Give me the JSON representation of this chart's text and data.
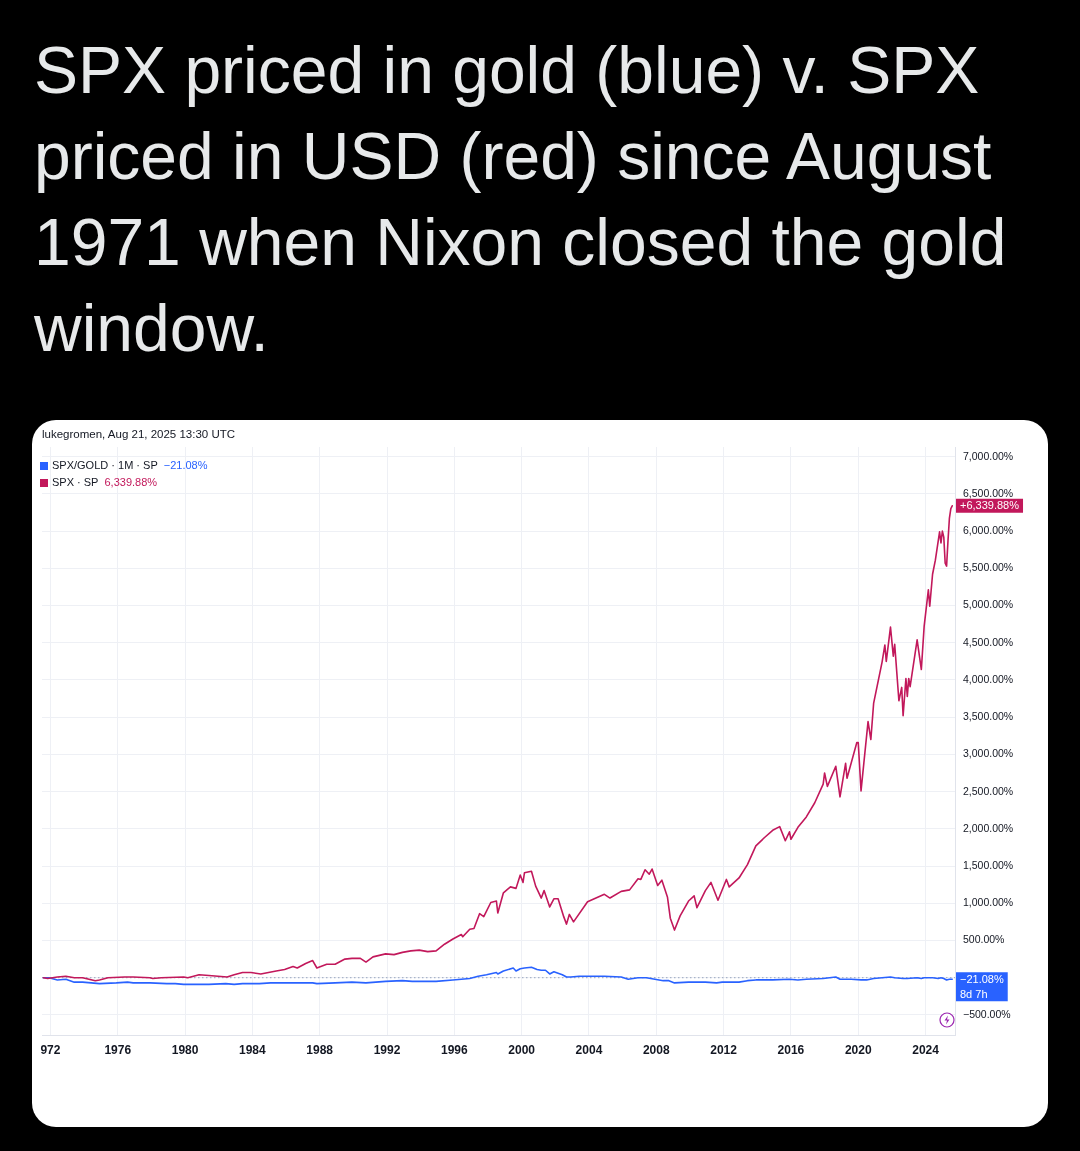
{
  "chart_data": {
    "type": "line",
    "title": "SPX priced in gold (blue) v. SPX priced in USD (red) since August 1971 when Nixon closed the gold window.",
    "subtitle": "lukegromen, Aug 21, 2025 13:30 UTC",
    "xlim": [
      "1971-07",
      "2025-10"
    ],
    "xticks": [
      {
        "value": "1972",
        "label": "972"
      },
      "1976",
      "1980",
      "1984",
      "1988",
      "1992",
      "1996",
      "2000",
      "2004",
      "2008",
      "2012",
      "2016",
      "2020",
      "2024"
    ],
    "ylim": [
      -770,
      7130
    ],
    "yticks": [
      {
        "value": -500,
        "label": "−500.00%"
      },
      {
        "value": 0,
        "label": null
      },
      {
        "value": 500,
        "label": "500.00%"
      },
      {
        "value": 1000,
        "label": "1,000.00%"
      },
      {
        "value": 1500,
        "label": "1,500.00%"
      },
      {
        "value": 2000,
        "label": "2,000.00%"
      },
      {
        "value": 2500,
        "label": "2,500.00%"
      },
      {
        "value": 3000,
        "label": "3,000.00%"
      },
      {
        "value": 3500,
        "label": "3,500.00%"
      },
      {
        "value": 4000,
        "label": "4,000.00%"
      },
      {
        "value": 4500,
        "label": "4,500.00%"
      },
      {
        "value": 5000,
        "label": "5,000.00%"
      },
      {
        "value": 5500,
        "label": "5,500.00%"
      },
      {
        "value": 6000,
        "label": "6,000.00%"
      },
      {
        "value": 6500,
        "label": "6,500.00%"
      },
      {
        "value": 7000,
        "label": "7,000.00%"
      }
    ],
    "grid": true,
    "legend": "top left",
    "ref_lines": [
      {
        "axis": "y",
        "value": 0,
        "color": "#a9b4c9",
        "line_style": "dotted"
      }
    ],
    "annotations": [
      "−21.08%",
      "6,339.88%",
      {
        "text": "8d 7h",
        "x": "2025-08",
        "y": -21.08
      }
    ],
    "series": [
      {
        "name": "SPX/GOLD · 1M · SP",
        "color": "#2962ff",
        "x": [
          "1971-08",
          "1971-12",
          "1972-06",
          "1972-12",
          "1973-06",
          "1973-12",
          "1974-06",
          "1974-12",
          "1975-12",
          "1976-08",
          "1976-12",
          "1977-12",
          "1978-12",
          "1979-06",
          "1979-12",
          "1980-01",
          "1981-06",
          "1982-06",
          "1982-12",
          "1983-06",
          "1984-06",
          "1985-02",
          "1985-12",
          "1986-12",
          "1987-08",
          "1987-11",
          "1988-12",
          "1989-12",
          "1990-10",
          "1991-12",
          "1992-12",
          "1993-07",
          "1993-12",
          "1994-12",
          "1995-12",
          "1996-12",
          "1997-06",
          "1997-12",
          "1998-07",
          "1998-08",
          "1998-12",
          "1999-07",
          "1999-09",
          "1999-12",
          "2000-03",
          "2000-08",
          "2000-12",
          "2001-03",
          "2001-06",
          "2001-09",
          "2001-12",
          "2002-06",
          "2002-09",
          "2002-12",
          "2003-06",
          "2003-12",
          "2004-12",
          "2005-12",
          "2006-05",
          "2006-12",
          "2007-06",
          "2007-12",
          "2008-06",
          "2008-10",
          "2009-02",
          "2009-12",
          "2010-12",
          "2011-08",
          "2011-12",
          "2012-12",
          "2013-06",
          "2013-12",
          "2014-12",
          "2015-12",
          "2016-06",
          "2016-12",
          "2017-12",
          "2018-09",
          "2018-12",
          "2019-08",
          "2020-03",
          "2020-07",
          "2020-12",
          "2021-06",
          "2021-12",
          "2022-03",
          "2022-09",
          "2022-12",
          "2023-07",
          "2023-10",
          "2023-12",
          "2024-03",
          "2024-06",
          "2024-10",
          "2024-12",
          "2025-02",
          "2025-04",
          "2025-06",
          "2025-07",
          "2025-08"
        ],
        "values": [
          0,
          0,
          -30,
          -20,
          -60,
          -60,
          -70,
          -80,
          -70,
          -60,
          -70,
          -70,
          -80,
          -80,
          -90,
          -90,
          -90,
          -80,
          -90,
          -80,
          -80,
          -70,
          -70,
          -70,
          -70,
          -80,
          -70,
          -60,
          -70,
          -50,
          -40,
          -50,
          -50,
          -50,
          -30,
          -10,
          20,
          40,
          70,
          50,
          90,
          130,
          90,
          120,
          130,
          140,
          110,
          100,
          100,
          50,
          80,
          40,
          10,
          10,
          20,
          20,
          20,
          10,
          -20,
          0,
          0,
          -20,
          -40,
          -40,
          -70,
          -60,
          -60,
          -70,
          -60,
          -60,
          -40,
          -30,
          -30,
          -20,
          -30,
          -20,
          -10,
          10,
          -20,
          -20,
          -30,
          -30,
          -10,
          0,
          10,
          0,
          -10,
          -10,
          0,
          -10,
          0,
          0,
          0,
          -10,
          0,
          -10,
          -30,
          -20,
          -20,
          -21.08
        ],
        "value_labels": [
          null,
          null,
          null,
          null,
          null,
          null,
          null,
          null,
          null,
          null,
          null,
          null,
          null,
          null,
          null,
          null,
          null,
          null,
          null,
          null,
          null,
          null,
          null,
          null,
          null,
          null,
          null,
          null,
          null,
          null,
          null,
          null,
          null,
          null,
          null,
          null,
          null,
          null,
          null,
          null,
          null,
          null,
          null,
          null,
          null,
          null,
          null,
          null,
          null,
          null,
          null,
          null,
          null,
          null,
          null,
          null,
          null,
          null,
          null,
          null,
          null,
          null,
          null,
          null,
          null,
          null,
          null,
          null,
          null,
          null,
          null,
          null,
          null,
          null,
          null,
          null,
          null,
          null,
          null,
          null,
          null,
          null,
          null,
          null,
          null,
          null,
          null,
          null,
          null,
          null,
          null,
          null,
          null,
          null,
          null,
          null,
          null,
          null,
          null,
          "−21.08%"
        ]
      },
      {
        "name": "SPX · SP",
        "color": "#c2185b",
        "x": [
          "1971-08",
          "1971-11",
          "1972-06",
          "1972-12",
          "1973-06",
          "1973-12",
          "1974-09",
          "1974-12",
          "1975-06",
          "1976-06",
          "1976-12",
          "1977-12",
          "1978-02",
          "1978-08",
          "1979-12",
          "1980-03",
          "1980-11",
          "1981-06",
          "1982-07",
          "1982-12",
          "1983-06",
          "1983-12",
          "1984-07",
          "1985-06",
          "1985-12",
          "1986-06",
          "1986-09",
          "1987-03",
          "1987-08",
          "1987-11",
          "1988-06",
          "1988-12",
          "1989-07",
          "1989-12",
          "1990-06",
          "1990-10",
          "1991-03",
          "1991-12",
          "1992-06",
          "1992-12",
          "1993-06",
          "1993-12",
          "1994-06",
          "1994-12",
          "1995-06",
          "1995-12",
          "1996-06",
          "1996-07",
          "1996-12",
          "1997-03",
          "1997-07",
          "1997-10",
          "1998-03",
          "1998-07",
          "1998-08",
          "1998-12",
          "1999-05",
          "1999-09",
          "1999-12",
          "2000-02",
          "2000-03",
          "2000-08",
          "2000-11",
          "2001-03",
          "2001-05",
          "2001-09",
          "2001-12",
          "2002-03",
          "2002-07",
          "2002-09",
          "2002-11",
          "2003-02",
          "2003-12",
          "2004-12",
          "2005-04",
          "2005-12",
          "2006-06",
          "2006-12",
          "2007-02",
          "2007-05",
          "2007-08",
          "2007-10",
          "2008-02",
          "2008-05",
          "2008-09",
          "2008-11",
          "2009-02",
          "2009-06",
          "2009-12",
          "2010-04",
          "2010-06",
          "2010-12",
          "2011-04",
          "2011-09",
          "2012-03",
          "2012-05",
          "2012-12",
          "2013-06",
          "2013-12",
          "2014-06",
          "2014-12",
          "2015-05",
          "2015-09",
          "2015-12",
          "2016-01",
          "2016-06",
          "2016-12",
          "2017-06",
          "2017-12",
          "2018-01",
          "2018-03",
          "2018-09",
          "2018-12",
          "2019-04",
          "2019-05",
          "2019-12",
          "2020-01",
          "2020-03",
          "2020-08",
          "2020-10",
          "2020-12",
          "2021-06",
          "2021-08",
          "2021-09",
          "2021-12",
          "2022-02",
          "2022-03",
          "2022-06",
          "2022-08",
          "2022-09",
          "2022-11",
          "2022-12",
          "2023-01",
          "2023-02",
          "2023-07",
          "2023-10",
          "2023-12",
          "2024-03",
          "2024-04",
          "2024-06",
          "2024-08",
          "2024-11",
          "2024-12",
          "2025-01",
          "2025-02",
          "2025-03",
          "2025-04",
          "2025-05",
          "2025-06",
          "2025-07",
          "2025-08"
        ],
        "values": [
          0,
          -10,
          10,
          20,
          0,
          0,
          -40,
          -30,
          0,
          10,
          10,
          0,
          -10,
          0,
          10,
          0,
          40,
          30,
          10,
          40,
          70,
          70,
          50,
          90,
          110,
          150,
          130,
          190,
          230,
          130,
          180,
          180,
          250,
          260,
          260,
          210,
          280,
          320,
          310,
          340,
          360,
          370,
          350,
          360,
          450,
          520,
          580,
          550,
          650,
          660,
          860,
          820,
          1010,
          1030,
          870,
          1140,
          1220,
          1200,
          1380,
          1280,
          1410,
          1430,
          1230,
          1070,
          1170,
          950,
          1060,
          1060,
          820,
          720,
          850,
          750,
          1020,
          1120,
          1070,
          1160,
          1180,
          1330,
          1320,
          1450,
          1390,
          1460,
          1240,
          1310,
          1080,
          800,
          640,
          830,
          1030,
          1100,
          940,
          1170,
          1280,
          1040,
          1320,
          1220,
          1340,
          1520,
          1770,
          1880,
          1980,
          2030,
          1840,
          1960,
          1860,
          2020,
          2160,
          2350,
          2600,
          2750,
          2570,
          2840,
          2430,
          2880,
          2680,
          3160,
          3160,
          2510,
          3440,
          3200,
          3690,
          4240,
          4470,
          4250,
          4710,
          4320,
          4480,
          3720,
          3900,
          3520,
          4020,
          3780,
          4020,
          3910,
          4540,
          4140,
          4720,
          5210,
          4990,
          5420,
          5610,
          5990,
          5840,
          6000,
          5920,
          5570,
          5530,
          5870,
          6170,
          6300,
          6339.88
        ],
        "value_labels": [
          null,
          null,
          null,
          null,
          null,
          null,
          null,
          null,
          null,
          null,
          null,
          null,
          null,
          null,
          null,
          null,
          null,
          null,
          null,
          null,
          null,
          null,
          null,
          null,
          null,
          null,
          null,
          null,
          null,
          null,
          null,
          null,
          null,
          null,
          null,
          null,
          null,
          null,
          null,
          null,
          null,
          null,
          null,
          null,
          null,
          null,
          null,
          null,
          null,
          null,
          null,
          null,
          null,
          null,
          null,
          null,
          null,
          null,
          null,
          null,
          null,
          null,
          null,
          null,
          null,
          null,
          null,
          null,
          null,
          null,
          null,
          null,
          null,
          null,
          null,
          null,
          null,
          null,
          null,
          null,
          null,
          null,
          null,
          null,
          null,
          null,
          null,
          null,
          null,
          null,
          null,
          null,
          null,
          null,
          null,
          null,
          null,
          null,
          null,
          null,
          null,
          null,
          null,
          null,
          null,
          null,
          null,
          null,
          null,
          null,
          null,
          null,
          null,
          null,
          null,
          null,
          null,
          null,
          null,
          null,
          null,
          null,
          null,
          null,
          null,
          null,
          null,
          null,
          null,
          null,
          null,
          null,
          null,
          null,
          null,
          null,
          null,
          null,
          null,
          null,
          null,
          null,
          null,
          null,
          null,
          null,
          null,
          null,
          null,
          null,
          "+6,339.88%"
        ]
      }
    ]
  }
}
